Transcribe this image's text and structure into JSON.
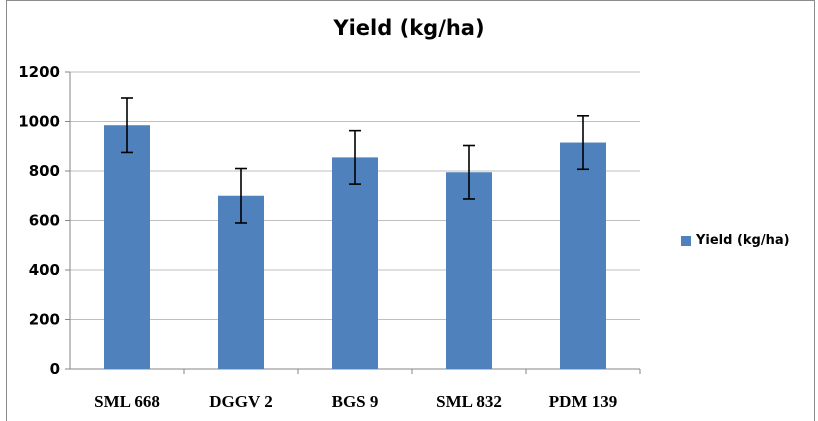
{
  "chart_data": {
    "type": "bar",
    "title": "Yield (kg/ha)",
    "categories": [
      "SML 668",
      "DGGV 2",
      "BGS 9",
      "SML 832",
      "PDM 139"
    ],
    "series": [
      {
        "name": "Yield (kg/ha)",
        "values": [
          985,
          700,
          855,
          795,
          915
        ],
        "error": [
          110,
          110,
          108,
          108,
          108
        ]
      }
    ],
    "yticks": [
      "0",
      "200",
      "400",
      "600",
      "800",
      "1000",
      "1200"
    ],
    "ylim": [
      0,
      1200
    ],
    "grid": true,
    "legend_position": "right",
    "colors": {
      "bar": "#4f81bd",
      "grid": "#bfbfbf",
      "axis": "#868686",
      "error": "#000000"
    }
  }
}
